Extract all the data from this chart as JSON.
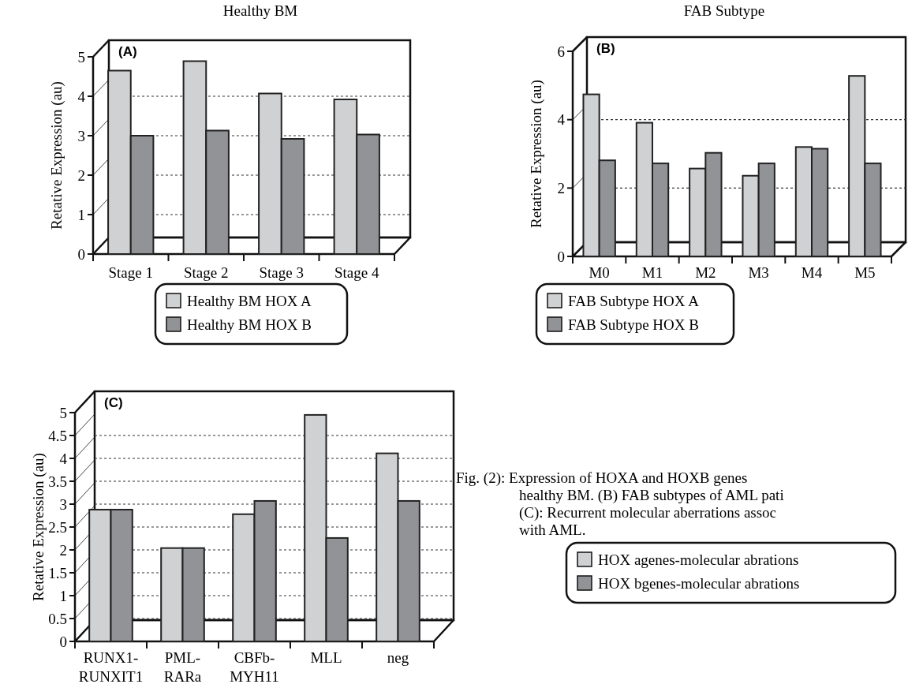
{
  "chart_data": [
    {
      "type": "bar",
      "title": "Healthy BM",
      "ylabel": "Retative Expression (au)",
      "categories": [
        "Stage 1",
        "Stage 2",
        "Stage 3",
        "Stage 4"
      ],
      "series": [
        {
          "name": "Healthy BM HOX A",
          "color": "#d0d1d3",
          "values": [
            4.65,
            4.89,
            4.07,
            3.92
          ]
        },
        {
          "name": "Healthy BM HOX B",
          "color": "#929396",
          "values": [
            3.0,
            3.13,
            2.92,
            3.03
          ]
        }
      ],
      "ylim": [
        0,
        5
      ],
      "yticks": [
        0,
        1,
        2,
        3,
        4,
        5
      ],
      "grid": "y",
      "legend": "bottom",
      "annotations": [
        "(A)"
      ]
    },
    {
      "type": "bar",
      "title": "FAB Subtype",
      "ylabel": "Retative Expression (au)",
      "categories": [
        "M0",
        "M1",
        "M2",
        "M3",
        "M4",
        "M5"
      ],
      "series": [
        {
          "name": "FAB Subtype HOX A",
          "color": "#d0d1d3",
          "values": [
            4.74,
            3.91,
            2.57,
            2.36,
            3.2,
            5.28
          ]
        },
        {
          "name": "FAB Subtype HOX B",
          "color": "#929396",
          "values": [
            2.81,
            2.72,
            3.03,
            2.72,
            3.15,
            2.72
          ]
        }
      ],
      "ylim": [
        0,
        6
      ],
      "yticks": [
        0,
        2,
        4,
        6
      ],
      "grid": "y",
      "legend": "bottom",
      "annotations": [
        "(B)"
      ]
    },
    {
      "type": "bar",
      "ylabel": "Retative Expression (au)",
      "categories": [
        "RUNX1-RUNXIT1",
        "PML-RARa",
        "CBFb-MYH11",
        "MLL",
        "neg"
      ],
      "series": [
        {
          "name": "HOX agenes-molecular abrations",
          "color": "#d0d1d3",
          "values": [
            2.88,
            2.04,
            2.78,
            4.95,
            4.11
          ]
        },
        {
          "name": "HOX bgenes-molecular abrations",
          "color": "#929396",
          "values": [
            2.88,
            2.04,
            3.07,
            2.26,
            3.07
          ]
        }
      ],
      "ylim": [
        0,
        5
      ],
      "yticks": [
        0,
        0.5,
        1,
        1.5,
        2,
        2.5,
        3,
        3.5,
        4,
        4.5,
        5
      ],
      "grid": "y",
      "legend": "right",
      "annotations": [
        "(C)",
        "Fig. (2): Expression of HOXA and HOXB genes\nhealthy BM. (B) FAB subtypes of AML pati\n(C): Recurrent molecular aberrations assoc\nwith AML."
      ]
    }
  ]
}
